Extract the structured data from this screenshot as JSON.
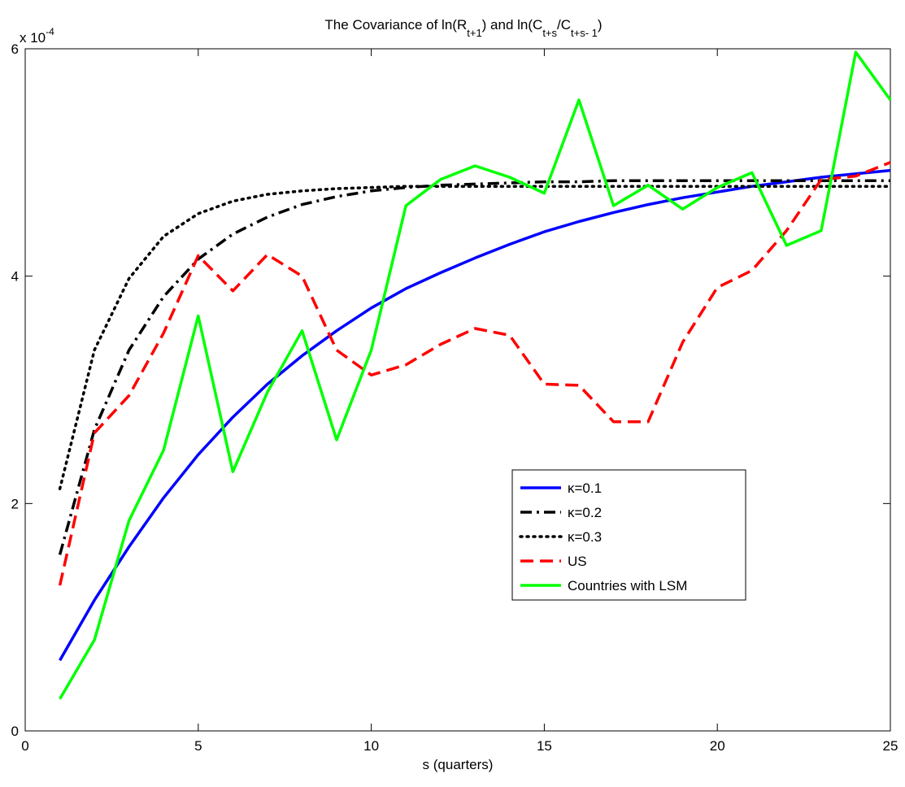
{
  "chart_data": {
    "type": "line",
    "title": {
      "pre": "The Covariance of ln(R",
      "sub1": "t+1",
      "mid": ") and ln(C",
      "sub2": "t+s",
      "slash": "/C",
      "sub3": "t+s- 1",
      "end": ")"
    },
    "xlabel": "s (quarters)",
    "ylabel": "",
    "exponent": {
      "base": "x 10",
      "power": "-4"
    },
    "xlim": [
      0,
      25
    ],
    "ylim": [
      0,
      6
    ],
    "xticks": [
      0,
      5,
      10,
      15,
      20,
      25
    ],
    "yticks": [
      0,
      2,
      4,
      6
    ],
    "x": [
      1,
      2,
      3,
      4,
      5,
      6,
      7,
      8,
      9,
      10,
      11,
      12,
      13,
      14,
      15,
      16,
      17,
      18,
      19,
      20,
      21,
      22,
      23,
      24,
      25
    ],
    "legend_position": "center-right",
    "series": [
      {
        "name": "κ=0.1",
        "color": "#0000ff",
        "style": "solid",
        "values": [
          0.62,
          1.15,
          1.62,
          2.05,
          2.43,
          2.76,
          3.05,
          3.3,
          3.52,
          3.72,
          3.89,
          4.03,
          4.16,
          4.28,
          4.39,
          4.48,
          4.56,
          4.63,
          4.69,
          4.74,
          4.79,
          4.83,
          4.87,
          4.9,
          4.93
        ]
      },
      {
        "name": "κ=0.2",
        "color": "#000000",
        "style": "dashdot",
        "values": [
          1.55,
          2.65,
          3.35,
          3.82,
          4.15,
          4.37,
          4.52,
          4.63,
          4.7,
          4.75,
          4.78,
          4.8,
          4.81,
          4.82,
          4.83,
          4.83,
          4.84,
          4.84,
          4.84,
          4.84,
          4.84,
          4.84,
          4.84,
          4.84,
          4.84
        ]
      },
      {
        "name": "κ=0.3",
        "color": "#000000",
        "style": "dotted",
        "values": [
          2.13,
          3.35,
          3.98,
          4.35,
          4.55,
          4.66,
          4.72,
          4.75,
          4.77,
          4.78,
          4.79,
          4.79,
          4.79,
          4.79,
          4.79,
          4.79,
          4.79,
          4.79,
          4.79,
          4.79,
          4.79,
          4.79,
          4.79,
          4.79,
          4.79
        ]
      },
      {
        "name": "US",
        "color": "#ff0000",
        "style": "dashed",
        "values": [
          1.28,
          2.62,
          2.95,
          3.5,
          4.18,
          3.87,
          4.19,
          4.0,
          3.35,
          3.13,
          3.22,
          3.4,
          3.54,
          3.48,
          3.05,
          3.04,
          2.72,
          2.72,
          3.42,
          3.9,
          4.05,
          4.4,
          4.85,
          4.88,
          5.0
        ]
      },
      {
        "name": "Countries with LSM",
        "color": "#00ff00",
        "style": "solid",
        "values": [
          0.28,
          0.8,
          1.85,
          2.47,
          3.65,
          2.28,
          2.98,
          3.52,
          2.56,
          3.35,
          4.62,
          4.85,
          4.97,
          4.87,
          4.73,
          5.55,
          4.62,
          4.8,
          4.59,
          4.78,
          4.91,
          4.27,
          4.4,
          5.97,
          5.55
        ]
      }
    ]
  }
}
